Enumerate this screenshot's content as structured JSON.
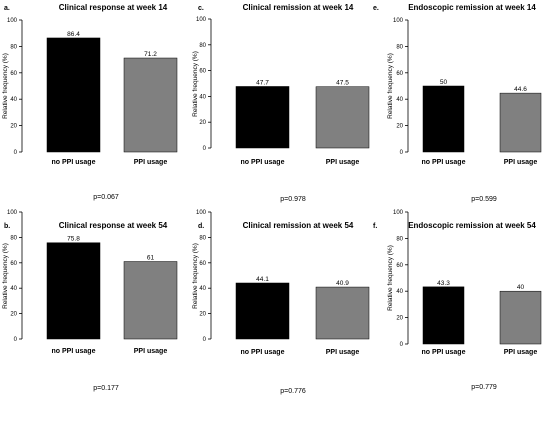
{
  "figure": {
    "tick_labels": [
      "0",
      "20",
      "40",
      "60",
      "80",
      "100"
    ]
  },
  "chart_data": [
    {
      "panel": "a.",
      "type": "bar",
      "title": "Clinical response at week 14",
      "ylabel": "Relative frequency (%)",
      "xlabel": "",
      "categories": [
        "no PPI usage",
        "PPI usage"
      ],
      "values": [
        86.4,
        71.2
      ],
      "value_labels": [
        "86.4",
        "71.2"
      ],
      "colors": [
        "#000000",
        "#808080"
      ],
      "ylim": [
        0,
        100
      ],
      "yticks": [
        0,
        20,
        40,
        60,
        80,
        100
      ],
      "pvalue": "p=0.067",
      "grid": false
    },
    {
      "panel": "c.",
      "type": "bar",
      "title": "Clinical remission at week 14",
      "ylabel": "Relative frequency (%)",
      "xlabel": "",
      "categories": [
        "no PPI usage",
        "PPI usage"
      ],
      "values": [
        47.7,
        47.5
      ],
      "value_labels": [
        "47.7",
        "47.5"
      ],
      "colors": [
        "#000000",
        "#808080"
      ],
      "ylim": [
        0,
        100
      ],
      "yticks": [
        0,
        20,
        40,
        60,
        80,
        100
      ],
      "pvalue": "p=0.978",
      "grid": false
    },
    {
      "panel": "e.",
      "type": "bar",
      "title": "Endoscopic remission at week 14",
      "ylabel": "Relative frequency (%)",
      "xlabel": "",
      "categories": [
        "no PPI usage",
        "PPI usage"
      ],
      "values": [
        50,
        44.6
      ],
      "value_labels": [
        "50",
        "44.6"
      ],
      "colors": [
        "#000000",
        "#808080"
      ],
      "ylim": [
        0,
        100
      ],
      "yticks": [
        0,
        20,
        40,
        60,
        80,
        100
      ],
      "pvalue": "p=0.599",
      "grid": false
    },
    {
      "panel": "b.",
      "type": "bar",
      "title": "Clinical response at week 54",
      "ylabel": "Relative frequency (%)",
      "xlabel": "",
      "categories": [
        "no PPI usage",
        "PPI usage"
      ],
      "values": [
        75.8,
        61
      ],
      "value_labels": [
        "75.8",
        "61"
      ],
      "colors": [
        "#000000",
        "#808080"
      ],
      "ylim": [
        0,
        100
      ],
      "yticks": [
        0,
        20,
        40,
        60,
        80,
        100
      ],
      "pvalue": "p=0.177",
      "grid": false
    },
    {
      "panel": "d.",
      "type": "bar",
      "title": "Clinical remission at week 54",
      "ylabel": "Relative frequency (%)",
      "xlabel": "",
      "categories": [
        "no PPI usage",
        "PPI usage"
      ],
      "values": [
        44.1,
        40.9
      ],
      "value_labels": [
        "44.1",
        "40.9"
      ],
      "colors": [
        "#000000",
        "#808080"
      ],
      "ylim": [
        0,
        100
      ],
      "yticks": [
        0,
        20,
        40,
        60,
        80,
        100
      ],
      "pvalue": "p=0.776",
      "grid": false
    },
    {
      "panel": "f.",
      "type": "bar",
      "title": "Endoscopic remission at week 54",
      "ylabel": "Relative frequency (%)",
      "xlabel": "",
      "categories": [
        "no PPI usage",
        "PPI usage"
      ],
      "values": [
        43.3,
        40
      ],
      "value_labels": [
        "43.3",
        "40"
      ],
      "colors": [
        "#000000",
        "#808080"
      ],
      "ylim": [
        0,
        100
      ],
      "yticks": [
        0,
        20,
        40,
        60,
        80,
        100
      ],
      "pvalue": "p=0.779",
      "grid": false
    }
  ]
}
